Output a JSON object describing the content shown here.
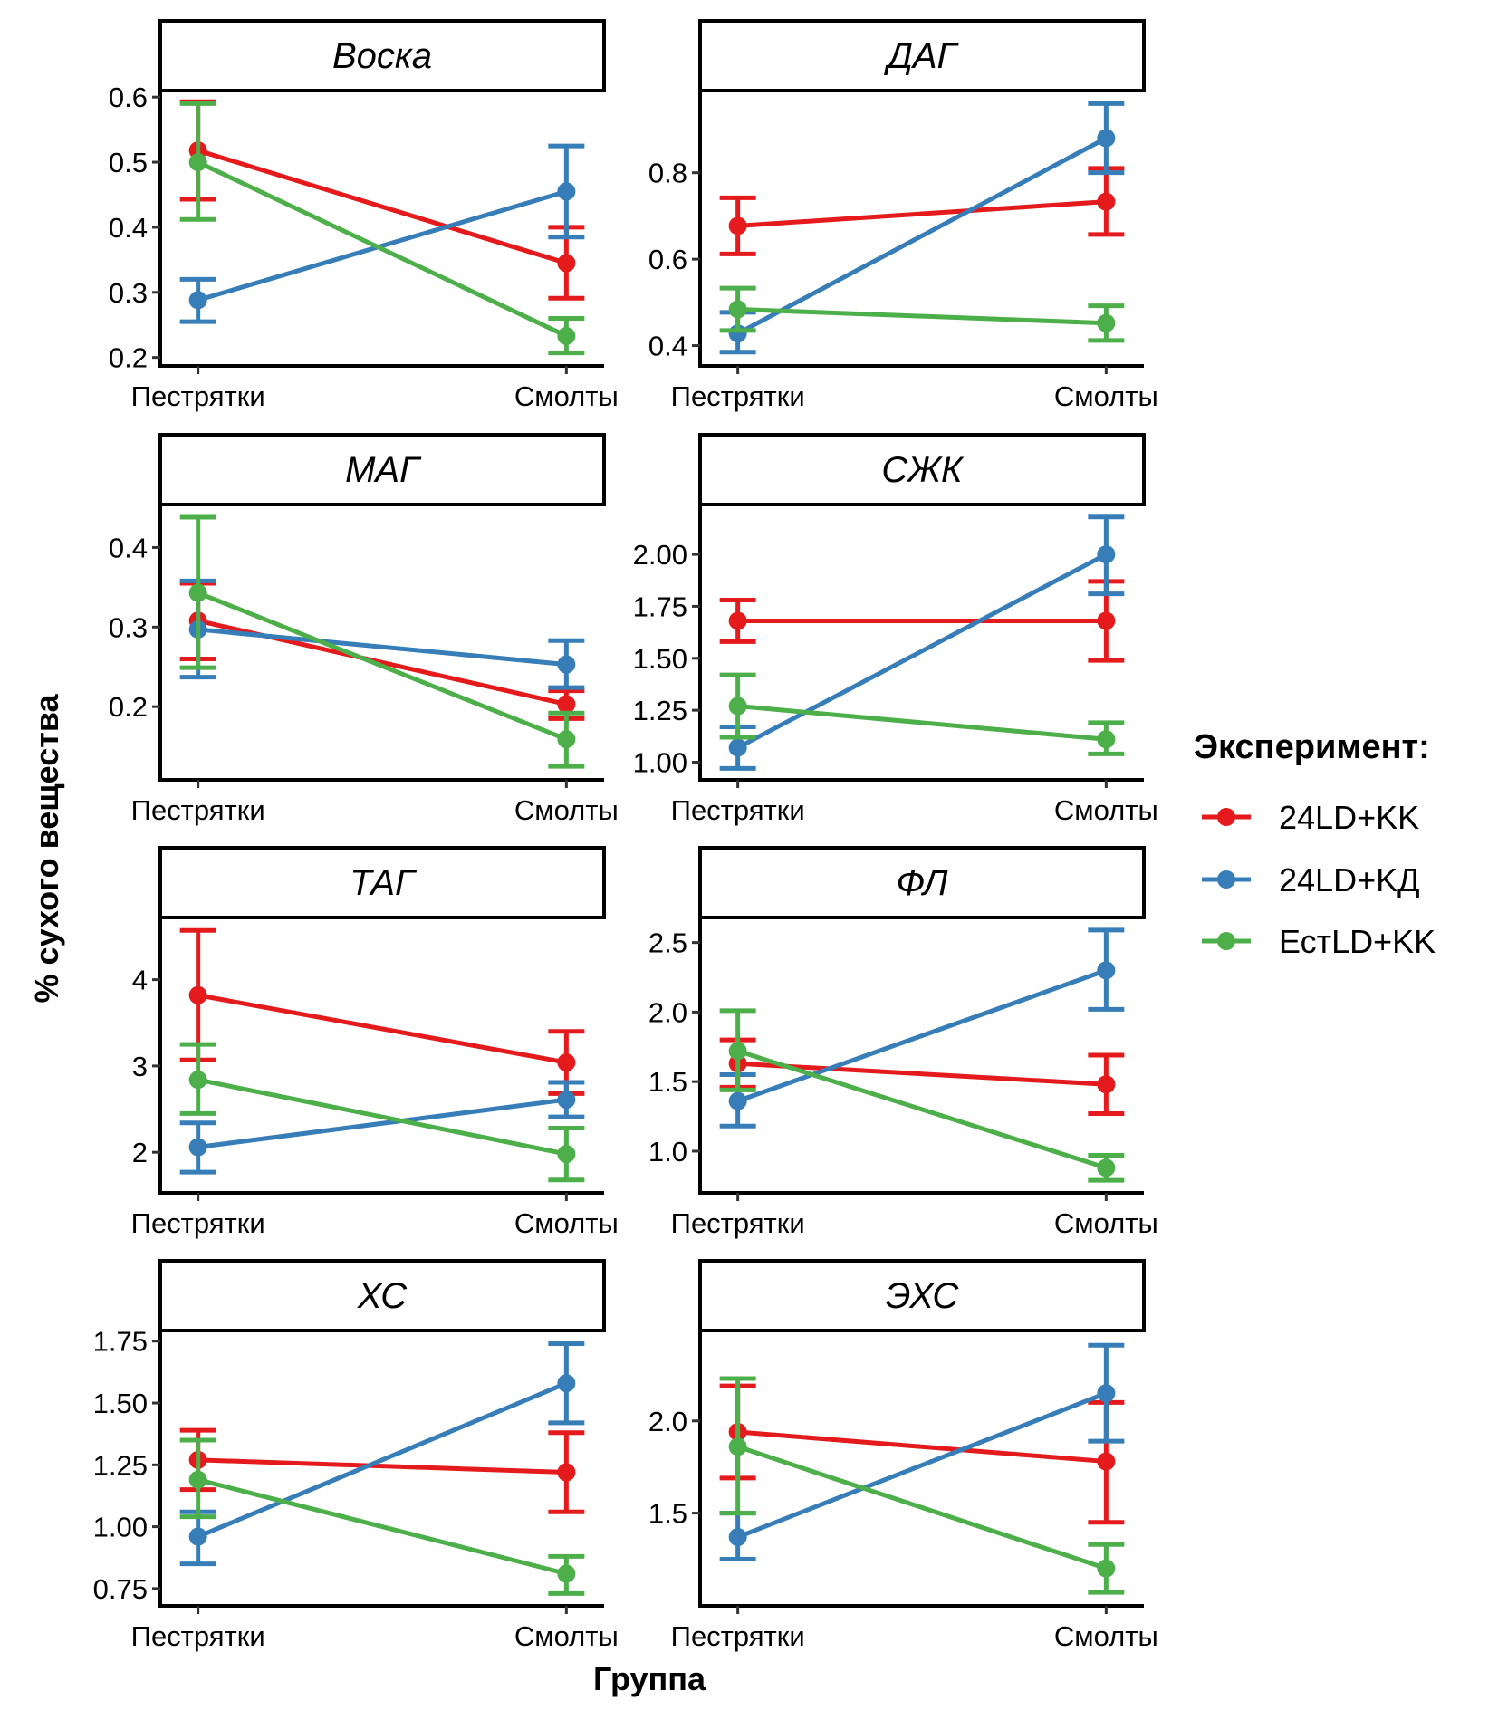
{
  "chart_data": {
    "type": "line",
    "subtype": "faceted point-line with error bars",
    "xlabel": "Группа",
    "ylabel": "% сухого вещества",
    "categories": [
      "Пестрятки",
      "Смолты"
    ],
    "legend": {
      "title": "Эксперимент:",
      "placement": "right",
      "entries": [
        {
          "name": "24LD+KK",
          "color": "#E41A1C"
        },
        {
          "name": "24LD+KД",
          "color": "#377EB8"
        },
        {
          "name": "ЕстLD+KK",
          "color": "#4DAF4A"
        }
      ]
    },
    "grid": false,
    "facets": [
      {
        "title": "Воска",
        "ylim": [
          0.187,
          0.61
        ],
        "yticks": [
          0.2,
          0.3,
          0.4,
          0.5,
          0.6
        ],
        "ytick_labels": [
          "0.2",
          "0.3",
          "0.4",
          "0.5",
          "0.6"
        ],
        "series": [
          {
            "name": "24LD+KK",
            "values": [
              0.518,
              0.345
            ],
            "lower": [
              0.443,
              0.291
            ],
            "upper": [
              0.593,
              0.4
            ]
          },
          {
            "name": "24LD+KД",
            "values": [
              0.288,
              0.455
            ],
            "lower": [
              0.255,
              0.385
            ],
            "upper": [
              0.32,
              0.525
            ]
          },
          {
            "name": "ЕстLD+KK",
            "values": [
              0.5,
              0.233
            ],
            "lower": [
              0.412,
              0.207
            ],
            "upper": [
              0.59,
              0.26
            ]
          }
        ]
      },
      {
        "title": "ДАГ",
        "ylim": [
          0.353,
          0.99
        ],
        "yticks": [
          0.4,
          0.6,
          0.8
        ],
        "ytick_labels": [
          "0.4",
          "0.6",
          "0.8"
        ],
        "series": [
          {
            "name": "24LD+KK",
            "values": [
              0.677,
              0.733
            ],
            "lower": [
              0.612,
              0.657
            ],
            "upper": [
              0.742,
              0.81
            ]
          },
          {
            "name": "24LD+KД",
            "values": [
              0.428,
              0.88
            ],
            "lower": [
              0.385,
              0.8
            ],
            "upper": [
              0.477,
              0.96
            ]
          },
          {
            "name": "ЕстLD+KK",
            "values": [
              0.484,
              0.452
            ],
            "lower": [
              0.435,
              0.412
            ],
            "upper": [
              0.533,
              0.492
            ]
          }
        ]
      },
      {
        "title": "МАГ",
        "ylim": [
          0.108,
          0.454
        ],
        "yticks": [
          0.2,
          0.3,
          0.4
        ],
        "ytick_labels": [
          "0.2",
          "0.3",
          "0.4"
        ],
        "series": [
          {
            "name": "24LD+KK",
            "values": [
              0.308,
              0.203
            ],
            "lower": [
              0.26,
              0.185
            ],
            "upper": [
              0.355,
              0.22
            ]
          },
          {
            "name": "24LD+KД",
            "values": [
              0.297,
              0.253
            ],
            "lower": [
              0.237,
              0.224
            ],
            "upper": [
              0.358,
              0.283
            ]
          },
          {
            "name": "ЕстLD+KK",
            "values": [
              0.343,
              0.159
            ],
            "lower": [
              0.249,
              0.125
            ],
            "upper": [
              0.438,
              0.192
            ]
          }
        ]
      },
      {
        "title": "СЖК",
        "ylim": [
          0.915,
          2.24
        ],
        "yticks": [
          1.0,
          1.25,
          1.5,
          1.75,
          2.0
        ],
        "ytick_labels": [
          "1.00",
          "1.25",
          "1.50",
          "1.75",
          "2.00"
        ],
        "series": [
          {
            "name": "24LD+KK",
            "values": [
              1.68,
              1.68
            ],
            "lower": [
              1.58,
              1.49
            ],
            "upper": [
              1.78,
              1.87
            ]
          },
          {
            "name": "24LD+KД",
            "values": [
              1.07,
              2.0
            ],
            "lower": [
              0.97,
              1.81
            ],
            "upper": [
              1.17,
              2.18
            ]
          },
          {
            "name": "ЕстLD+KK",
            "values": [
              1.27,
              1.11
            ],
            "lower": [
              1.12,
              1.04
            ],
            "upper": [
              1.42,
              1.19
            ]
          }
        ]
      },
      {
        "title": "ТАГ",
        "ylim": [
          1.53,
          4.72
        ],
        "yticks": [
          2,
          3,
          4
        ],
        "ytick_labels": [
          "2",
          "3",
          "4"
        ],
        "series": [
          {
            "name": "24LD+KK",
            "values": [
              3.82,
              3.04
            ],
            "lower": [
              3.07,
              2.68
            ],
            "upper": [
              4.57,
              3.4
            ]
          },
          {
            "name": "24LD+KД",
            "values": [
              2.06,
              2.61
            ],
            "lower": [
              1.77,
              2.41
            ],
            "upper": [
              2.34,
              2.81
            ]
          },
          {
            "name": "ЕстLD+KK",
            "values": [
              2.84,
              1.98
            ],
            "lower": [
              2.45,
              1.68
            ],
            "upper": [
              3.25,
              2.28
            ]
          }
        ]
      },
      {
        "title": "ФЛ",
        "ylim": [
          0.7,
          2.68
        ],
        "yticks": [
          1.0,
          1.5,
          2.0,
          2.5
        ],
        "ytick_labels": [
          "1.0",
          "1.5",
          "2.0",
          "2.5"
        ],
        "series": [
          {
            "name": "24LD+KK",
            "values": [
              1.63,
              1.48
            ],
            "lower": [
              1.46,
              1.27
            ],
            "upper": [
              1.8,
              1.69
            ]
          },
          {
            "name": "24LD+KД",
            "values": [
              1.36,
              2.3
            ],
            "lower": [
              1.18,
              2.02
            ],
            "upper": [
              1.55,
              2.59
            ]
          },
          {
            "name": "ЕстLD+KK",
            "values": [
              1.72,
              0.88
            ],
            "lower": [
              1.44,
              0.79
            ],
            "upper": [
              2.01,
              0.97
            ]
          }
        ]
      },
      {
        "title": "ХС",
        "ylim": [
          0.68,
          1.793
        ],
        "yticks": [
          0.75,
          1.0,
          1.25,
          1.5,
          1.75
        ],
        "ytick_labels": [
          "0.75",
          "1.00",
          "1.25",
          "1.50",
          "1.75"
        ],
        "series": [
          {
            "name": "24LD+KK",
            "values": [
              1.27,
              1.22
            ],
            "lower": [
              1.15,
              1.06
            ],
            "upper": [
              1.39,
              1.38
            ]
          },
          {
            "name": "24LD+KД",
            "values": [
              0.96,
              1.58
            ],
            "lower": [
              0.85,
              1.42
            ],
            "upper": [
              1.06,
              1.74
            ]
          },
          {
            "name": "ЕстLD+KK",
            "values": [
              1.19,
              0.81
            ],
            "lower": [
              1.04,
              0.73
            ],
            "upper": [
              1.35,
              0.88
            ]
          }
        ]
      },
      {
        "title": "ЭХС",
        "ylim": [
          0.997,
          2.49
        ],
        "yticks": [
          1.5,
          2.0
        ],
        "ytick_labels": [
          "1.5",
          "2.0"
        ],
        "series": [
          {
            "name": "24LD+KK",
            "values": [
              1.94,
              1.78
            ],
            "lower": [
              1.69,
              1.45
            ],
            "upper": [
              2.19,
              2.1
            ]
          },
          {
            "name": "24LD+KД",
            "values": [
              1.37,
              2.15
            ],
            "lower": [
              1.25,
              1.89
            ],
            "upper": [
              1.5,
              2.41
            ]
          },
          {
            "name": "ЕстLD+KK",
            "values": [
              1.86,
              1.2
            ],
            "lower": [
              1.5,
              1.07
            ],
            "upper": [
              2.23,
              1.33
            ]
          }
        ]
      }
    ]
  }
}
